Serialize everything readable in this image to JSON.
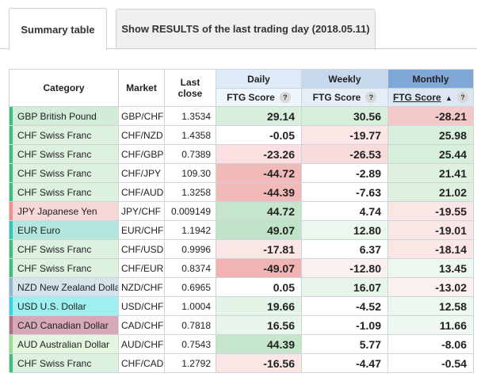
{
  "tabs": {
    "summary": "Summary table",
    "results": "Show RESULTS of the last trading day (2018.05.11)"
  },
  "table": {
    "headers": {
      "category": "Category",
      "market": "Market",
      "last_close": "Last close",
      "daily": "Daily",
      "weekly": "Weekly",
      "monthly": "Monthly",
      "ftg_score": "FTG Score",
      "help": "?"
    },
    "rows": [
      {
        "category": "GBP British Pound",
        "market": "GBP/CHF",
        "close": "1.3534",
        "daily": "29.14",
        "weekly": "30.56",
        "monthly": "-28.21",
        "cat_color": "#d3ecd9",
        "swatch": "#39c07a",
        "daily_bg": "#d9efdd",
        "weekly_bg": "#d6eedb",
        "monthly_bg": "#f3c8c8"
      },
      {
        "category": "CHF Swiss Franc",
        "market": "CHF/NZD",
        "close": "1.4358",
        "daily": "-0.05",
        "weekly": "-19.77",
        "monthly": "25.98",
        "cat_color": "#dcf1df",
        "swatch": "#39c07a",
        "daily_bg": "#ffffff",
        "weekly_bg": "#fbe6e6",
        "monthly_bg": "#d9efdd"
      },
      {
        "category": "CHF Swiss Franc",
        "market": "CHF/GBP",
        "close": "0.7389",
        "daily": "-23.26",
        "weekly": "-26.53",
        "monthly": "25.44",
        "cat_color": "#dcf1df",
        "swatch": "#39c07a",
        "daily_bg": "#fae0e0",
        "weekly_bg": "#f8dcdc",
        "monthly_bg": "#d9efdd"
      },
      {
        "category": "CHF Swiss Franc",
        "market": "CHF/JPY",
        "close": "109.30",
        "daily": "-44.72",
        "weekly": "-2.89",
        "monthly": "21.41",
        "cat_color": "#dcf1df",
        "swatch": "#39c07a",
        "daily_bg": "#f2b9b9",
        "weekly_bg": "#ffffff",
        "monthly_bg": "#def1e1"
      },
      {
        "category": "CHF Swiss Franc",
        "market": "CHF/AUD",
        "close": "1.3258",
        "daily": "-44.39",
        "weekly": "-7.63",
        "monthly": "21.02",
        "cat_color": "#dcf1df",
        "swatch": "#39c07a",
        "daily_bg": "#f2b9b9",
        "weekly_bg": "#ffffff",
        "monthly_bg": "#def1e1"
      },
      {
        "category": "JPY Japanese Yen",
        "market": "JPY/CHF",
        "close": "0.009149",
        "daily": "44.72",
        "weekly": "4.74",
        "monthly": "-19.55",
        "cat_color": "#f6d8d8",
        "swatch": "#ee8f8f",
        "daily_bg": "#c5e6cc",
        "weekly_bg": "#ffffff",
        "monthly_bg": "#fbe6e6"
      },
      {
        "category": "EUR Euro",
        "market": "EUR/CHF",
        "close": "1.1942",
        "daily": "49.07",
        "weekly": "12.80",
        "monthly": "-19.01",
        "cat_color": "#b3e7de",
        "swatch": "#2cc7b3",
        "daily_bg": "#c0e4c7",
        "weekly_bg": "#ecf7ee",
        "monthly_bg": "#fbe6e6"
      },
      {
        "category": "CHF Swiss Franc",
        "market": "CHF/USD",
        "close": "0.9996",
        "daily": "-17.81",
        "weekly": "6.37",
        "monthly": "-18.14",
        "cat_color": "#dcf1df",
        "swatch": "#39c07a",
        "daily_bg": "#fbe6e6",
        "weekly_bg": "#ffffff",
        "monthly_bg": "#fbe6e6"
      },
      {
        "category": "CHF Swiss Franc",
        "market": "CHF/EUR",
        "close": "0.8374",
        "daily": "-49.07",
        "weekly": "-12.80",
        "monthly": "13.45",
        "cat_color": "#dcf1df",
        "swatch": "#39c07a",
        "daily_bg": "#f1b3b3",
        "weekly_bg": "#fcefef",
        "monthly_bg": "#ecf7ee"
      },
      {
        "category": "NZD New Zealand Dollar",
        "market": "NZD/CHF",
        "close": "0.6965",
        "daily": "0.05",
        "weekly": "16.07",
        "monthly": "-13.02",
        "cat_color": "#d4e4ea",
        "swatch": "#8fb6c6",
        "daily_bg": "#ffffff",
        "weekly_bg": "#e6f4e9",
        "monthly_bg": "#fcefef"
      },
      {
        "category": "USD U.S. Dollar",
        "market": "USD/CHF",
        "close": "1.0004",
        "daily": "19.66",
        "weekly": "-4.52",
        "monthly": "12.58",
        "cat_color": "#9eefef",
        "swatch": "#35d3e2",
        "daily_bg": "#e3f3e6",
        "weekly_bg": "#ffffff",
        "monthly_bg": "#ecf7ee"
      },
      {
        "category": "CAD Canadian Dollar",
        "market": "CAD/CHF",
        "close": "0.7818",
        "daily": "16.56",
        "weekly": "-1.09",
        "monthly": "11.66",
        "cat_color": "#d7a8b9",
        "swatch": "#b06d87",
        "daily_bg": "#e8f5ea",
        "weekly_bg": "#ffffff",
        "monthly_bg": "#eef8f0"
      },
      {
        "category": "AUD Australian Dollar",
        "market": "AUD/CHF",
        "close": "0.7543",
        "daily": "44.39",
        "weekly": "5.77",
        "monthly": "-8.06",
        "cat_color": "#e3f6df",
        "swatch": "#9bdc8c",
        "daily_bg": "#c5e6cc",
        "weekly_bg": "#ffffff",
        "monthly_bg": "#ffffff"
      },
      {
        "category": "CHF Swiss Franc",
        "market": "CHF/CAD",
        "close": "1.2792",
        "daily": "-16.56",
        "weekly": "-4.47",
        "monthly": "-0.54",
        "cat_color": "#dcf1df",
        "swatch": "#39c07a",
        "daily_bg": "#fbe6e6",
        "weekly_bg": "#ffffff",
        "monthly_bg": "#ffffff"
      }
    ]
  }
}
